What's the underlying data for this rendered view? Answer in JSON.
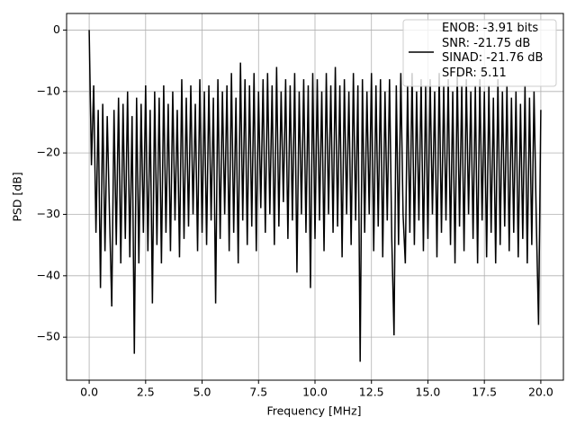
{
  "chart_data": {
    "type": "line",
    "xlabel": "Frequency [MHz]",
    "ylabel": "PSD [dB]",
    "xlim": [
      -1,
      21
    ],
    "ylim": [
      -57,
      2.7
    ],
    "grid": true,
    "legend": "upper right",
    "xticks": [
      {
        "value": 0,
        "label": "0.0"
      },
      {
        "value": 2.5,
        "label": "2.5"
      },
      {
        "value": 5,
        "label": "5.0"
      },
      {
        "value": 7.5,
        "label": "7.5"
      },
      {
        "value": 10,
        "label": "10.0"
      },
      {
        "value": 12.5,
        "label": "12.5"
      },
      {
        "value": 15,
        "label": "15.0"
      },
      {
        "value": 17.5,
        "label": "17.5"
      },
      {
        "value": 20,
        "label": "20.0"
      }
    ],
    "yticks": [
      {
        "value": -50,
        "label": "−50"
      },
      {
        "value": -40,
        "label": "−40"
      },
      {
        "value": -30,
        "label": "−30"
      },
      {
        "value": -20,
        "label": "−20"
      },
      {
        "value": -10,
        "label": "−10"
      },
      0
    ],
    "x": [
      0,
      0.1,
      0.2,
      0.3,
      0.4,
      0.5,
      0.6,
      0.7,
      0.8,
      0.9,
      1,
      1.1,
      1.2,
      1.3,
      1.4,
      1.5,
      1.6,
      1.7,
      1.8,
      1.9,
      2,
      2.1,
      2.2,
      2.3,
      2.4,
      2.5,
      2.6,
      2.7,
      2.8,
      2.9,
      3,
      3.1,
      3.2,
      3.3,
      3.4,
      3.5,
      3.6,
      3.7,
      3.8,
      3.9,
      4,
      4.1,
      4.2,
      4.3,
      4.4,
      4.5,
      4.6,
      4.7,
      4.8,
      4.9,
      5,
      5.1,
      5.2,
      5.3,
      5.4,
      5.5,
      5.6,
      5.7,
      5.8,
      5.9,
      6,
      6.1,
      6.2,
      6.3,
      6.4,
      6.5,
      6.6,
      6.7,
      6.8,
      6.9,
      7,
      7.1,
      7.2,
      7.3,
      7.4,
      7.5,
      7.6,
      7.7,
      7.8,
      7.9,
      8,
      8.1,
      8.2,
      8.3,
      8.4,
      8.5,
      8.6,
      8.7,
      8.8,
      8.9,
      9,
      9.1,
      9.2,
      9.3,
      9.4,
      9.5,
      9.6,
      9.7,
      9.8,
      9.9,
      10,
      10.1,
      10.2,
      10.3,
      10.4,
      10.5,
      10.6,
      10.7,
      10.8,
      10.9,
      11,
      11.1,
      11.2,
      11.3,
      11.4,
      11.5,
      11.6,
      11.7,
      11.8,
      11.9,
      12,
      12.1,
      12.2,
      12.3,
      12.4,
      12.5,
      12.6,
      12.7,
      12.8,
      12.9,
      13,
      13.1,
      13.2,
      13.3,
      13.4,
      13.5,
      13.6,
      13.7,
      13.8,
      13.9,
      14,
      14.1,
      14.2,
      14.3,
      14.4,
      14.5,
      14.6,
      14.7,
      14.8,
      14.9,
      15,
      15.1,
      15.2,
      15.3,
      15.4,
      15.5,
      15.6,
      15.7,
      15.8,
      15.9,
      16,
      16.1,
      16.2,
      16.3,
      16.4,
      16.5,
      16.6,
      16.7,
      16.8,
      16.9,
      17,
      17.1,
      17.2,
      17.3,
      17.4,
      17.5,
      17.6,
      17.7,
      17.8,
      17.9,
      18,
      18.1,
      18.2,
      18.3,
      18.4,
      18.5,
      18.6,
      18.7,
      18.8,
      18.9,
      19,
      19.1,
      19.2,
      19.3,
      19.4,
      19.5,
      19.6,
      19.7,
      19.8,
      19.9,
      20
    ],
    "series": [
      {
        "name": "ENOB: -3.91 bits\nSNR: -21.75 dB\nSINAD: -21.76 dB\nSFDR: 5.11",
        "color": "#000000",
        "values": [
          0,
          -22,
          -9,
          -33,
          -13,
          -42,
          -12,
          -36,
          -14,
          -30,
          -45,
          -13,
          -35,
          -11,
          -38,
          -12,
          -34,
          -10,
          -37,
          -14,
          -52.7,
          -11,
          -38,
          -12,
          -33,
          -9,
          -36,
          -13,
          -44.5,
          -10,
          -35,
          -11,
          -38,
          -9,
          -33,
          -12,
          -36,
          -10,
          -31,
          -13,
          -37,
          -8,
          -34,
          -11,
          -32,
          -9,
          -30,
          -12,
          -36,
          -8,
          -33,
          -10,
          -35,
          -9,
          -31,
          -11,
          -44.5,
          -8,
          -34,
          -10,
          -30,
          -9,
          -36,
          -7,
          -33,
          -11,
          -38,
          -5.3,
          -31,
          -8,
          -35,
          -9,
          -32,
          -7,
          -36,
          -10,
          -29,
          -8,
          -33,
          -7,
          -30,
          -9,
          -35,
          -6,
          -32,
          -10,
          -28,
          -8,
          -34,
          -9,
          -31,
          -7,
          -39.5,
          -10,
          -30,
          -8,
          -33,
          -9,
          -42,
          -7,
          -34,
          -8,
          -31,
          -10,
          -36,
          -7,
          -30,
          -9,
          -33,
          -6,
          -32,
          -9,
          -37,
          -8,
          -30,
          -10,
          -35,
          -7,
          -31,
          -9,
          -54,
          -8,
          -33,
          -10,
          -30,
          -7,
          -36,
          -9,
          -32,
          -8,
          -37,
          -10,
          -31,
          -8,
          -34,
          -49.7,
          -9,
          -35,
          -7,
          -30,
          -38,
          -9,
          -33,
          -7,
          -35,
          -10,
          -31,
          -8,
          -36,
          -9,
          -34,
          -8,
          -30,
          -10,
          -37,
          -7,
          -33,
          -9,
          -31,
          -8,
          -35,
          -10,
          -38,
          -7,
          -32,
          -9,
          -36,
          -8,
          -30,
          -10,
          -34,
          -9,
          -38,
          -8,
          -31,
          -10,
          -37,
          -9,
          -33,
          -11,
          -38,
          -8,
          -35,
          -10,
          -32,
          -9,
          -36,
          -11,
          -33,
          -10,
          -37,
          -12,
          -34,
          -9,
          -38,
          -11,
          -35,
          -10,
          -31,
          -48,
          -13
        ]
      }
    ]
  }
}
